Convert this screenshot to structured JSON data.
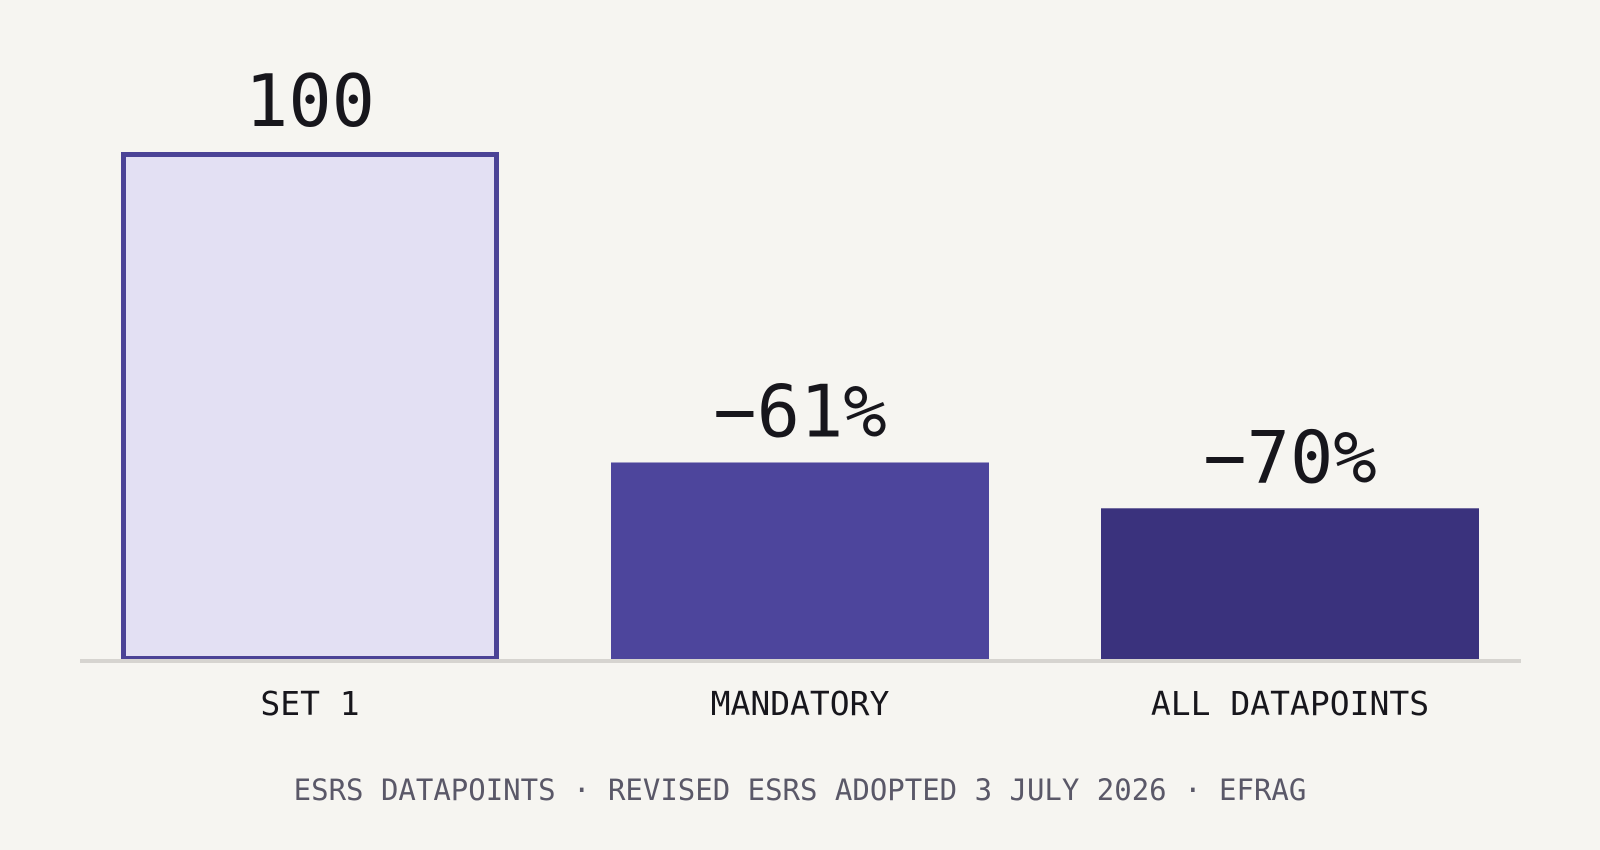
{
  "chart_data": {
    "type": "bar",
    "categories": [
      "SET 1",
      "MANDATORY",
      "ALL DATAPOINTS"
    ],
    "values": [
      100,
      39,
      30
    ],
    "data_labels": [
      "100",
      "−61%",
      "−70%"
    ],
    "ylim": [
      0,
      100
    ],
    "bar_styles": [
      {
        "fill": "#e3e0f3",
        "stroke": "#4b4396"
      },
      {
        "fill": "#4d459c",
        "stroke": ""
      },
      {
        "fill": "#3a327d",
        "stroke": ""
      }
    ],
    "baseline_color": "#d6d4d0",
    "grid": false,
    "legend": "none"
  },
  "caption": "ESRS DATAPOINTS · REVISED ESRS ADOPTED 3 JULY 2026 · EFRAG"
}
